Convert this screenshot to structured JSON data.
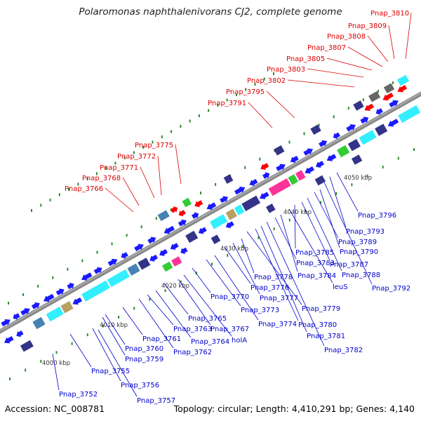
{
  "header": {
    "title": "Polaromonas naphthalenivorans CJ2, complete genome"
  },
  "footer": {
    "accession": "Accession: NC_008781",
    "summary": "Topology: circular; Length: 4,410,291 bp; Genes: 4,140"
  },
  "colors": {
    "red_label": "#dd0000",
    "blue_label": "#0000cc",
    "backbone": "#888888",
    "tick_dot": "#2d8a2d",
    "gene_blue": "#1a1aff",
    "gene_red": "#ff0000",
    "gene_cyan": "#33eeff",
    "gene_purple": "#333388",
    "gene_steel": "#4682b4",
    "gene_green": "#33cc33",
    "gene_magenta": "#ff3399",
    "gene_tan": "#b8a060",
    "gene_gray": "#666666"
  },
  "scale_labels": [
    "4000 kbp",
    "4010 kbp",
    "4020 kbp",
    "4030 kbp",
    "4040 kbp",
    "4050 kbp"
  ],
  "top_labels": [
    "Pnap_3766",
    "Pnap_3768",
    "Pnap_3771",
    "Pnap_3772",
    "Pnap_3775",
    "Pnap_3791",
    "Pnap_3795",
    "Pnap_3802",
    "Pnap_3803",
    "Pnap_3805",
    "Pnap_3807",
    "Pnap_3808",
    "Pnap_3809",
    "Pnap_3810"
  ],
  "bottom_labels": [
    "Pnap_3752",
    "Pnap_3755",
    "Pnap_3756",
    "Pnap_3757",
    "Pnap_3759",
    "Pnap_3760",
    "Pnap_3761",
    "Pnap_3762",
    "Pnap_3763",
    "Pnap_3764",
    "Pnap_3765",
    "Pnap_3767",
    "holA",
    "Pnap_3770",
    "Pnap_3773",
    "Pnap_3774",
    "Pnap_3776",
    "Pnap_3777",
    "Pnap_3778",
    "Pnap_3779",
    "Pnap_3780",
    "Pnap_3781",
    "Pnap_3782",
    "Pnap_3783",
    "Pnap_3784",
    "leuS",
    "Pnap_3785",
    "Pnap_3787",
    "Pnap_3788",
    "Pnap_3789",
    "Pnap_3790",
    "Pnap_3792",
    "Pnap_3793",
    "Pnap_3796"
  ]
}
